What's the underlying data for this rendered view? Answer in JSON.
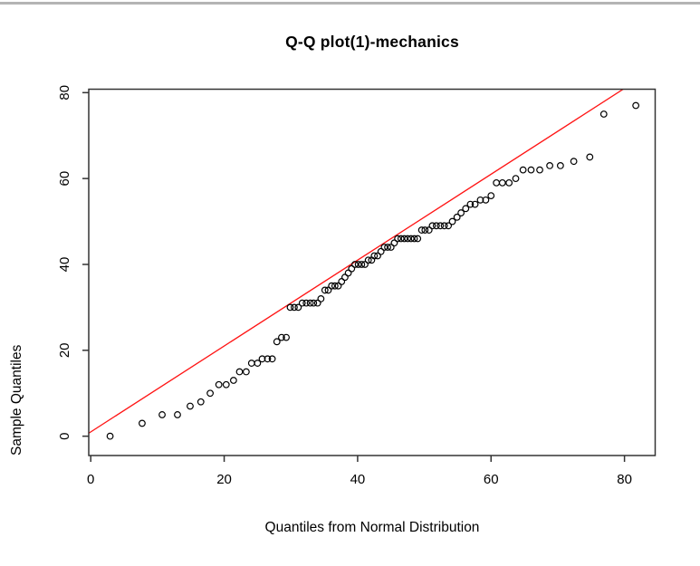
{
  "window": {
    "top_border_color": "#b4b4b4",
    "background": "#ffffff"
  },
  "chart_data": {
    "type": "scatter",
    "title": "Q-Q plot(1)-mechanics",
    "xlabel": "Quantiles from Normal Distribution",
    "ylabel": "Sample Quantiles",
    "x_ticks": [
      0,
      20,
      40,
      60,
      80
    ],
    "y_ticks": [
      0,
      20,
      40,
      60,
      80
    ],
    "x_range": [
      -0.3,
      84.6
    ],
    "y_range": [
      -4.5,
      80.8
    ],
    "grid": false,
    "legend": "none",
    "point_shape": "open-circle",
    "point_color": "#000000",
    "axis_color": "#333333",
    "ref_line": {
      "slope": 1,
      "intercept": 1,
      "color": "#ff1414"
    },
    "x": [
      2.9,
      7.7,
      10.7,
      13.0,
      14.9,
      16.5,
      17.9,
      19.2,
      20.3,
      21.4,
      22.3,
      23.3,
      24.1,
      25.0,
      25.7,
      26.5,
      27.2,
      27.9,
      28.6,
      29.3,
      29.9,
      30.5,
      31.1,
      31.7,
      32.3,
      32.9,
      33.4,
      34.0,
      34.5,
      35.1,
      35.6,
      36.1,
      36.6,
      37.1,
      37.6,
      38.1,
      38.6,
      39.1,
      39.6,
      40.1,
      40.6,
      41.1,
      41.6,
      42.1,
      42.5,
      43.0,
      43.5,
      44.0,
      44.5,
      45.0,
      45.5,
      46.0,
      46.5,
      47.0,
      47.5,
      48.0,
      48.5,
      49.0,
      49.6,
      50.1,
      50.7,
      51.2,
      51.8,
      52.4,
      53.0,
      53.6,
      54.2,
      54.9,
      55.5,
      56.2,
      56.9,
      57.6,
      58.4,
      59.2,
      60.0,
      60.8,
      61.7,
      62.7,
      63.7,
      64.8,
      66.0,
      67.3,
      68.8,
      70.4,
      72.4,
      74.8,
      76.9,
      81.7
    ],
    "y": [
      0,
      3,
      5,
      5,
      7,
      8,
      10,
      12,
      12,
      13,
      15,
      15,
      17,
      17,
      18,
      18,
      18,
      22,
      23,
      23,
      30,
      30,
      30,
      31,
      31,
      31,
      31,
      31,
      32,
      34,
      34,
      35,
      35,
      35,
      36,
      37,
      38,
      39,
      40,
      40,
      40,
      40,
      41,
      41,
      42,
      42,
      43,
      44,
      44,
      44,
      45,
      46,
      46,
      46,
      46,
      46,
      46,
      46,
      48,
      48,
      48,
      49,
      49,
      49,
      49,
      49,
      50,
      51,
      52,
      53,
      54,
      54,
      55,
      55,
      56,
      59,
      59,
      59,
      60,
      62,
      62,
      62,
      63,
      63,
      64,
      65,
      75,
      77
    ]
  }
}
